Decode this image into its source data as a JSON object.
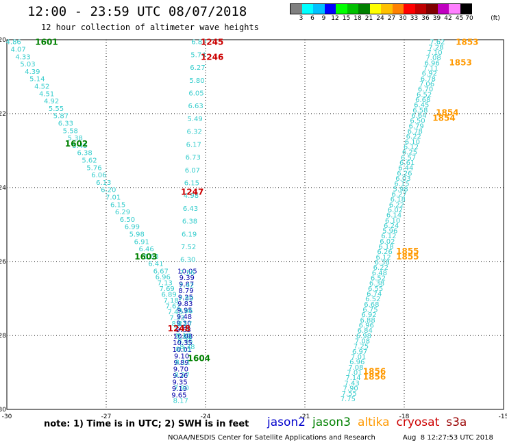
{
  "header": {
    "title": "12:00 - 23:59 UTC 08/07/2018",
    "subtitle": "12 hour collection of altimeter wave heights"
  },
  "color_scale": {
    "unit": "(ft)",
    "ticks": [
      "3",
      "6",
      "9",
      "12",
      "15",
      "18",
      "21",
      "24",
      "27",
      "30",
      "33",
      "36",
      "39",
      "42",
      "45",
      "70"
    ],
    "colors": [
      "#808080",
      "#00ffff",
      "#00c0ff",
      "#0000ff",
      "#00ff00",
      "#00c000",
      "#008000",
      "#ffff00",
      "#ffc000",
      "#ff8000",
      "#ff0000",
      "#c00000",
      "#800000",
      "#c000c0",
      "#ff80ff",
      "#000000"
    ]
  },
  "footer": {
    "note": "note: 1) Time is in UTC; 2) SWH is in feet",
    "credit": "NOAA/NESDIS Center for Satellite Applications and Research",
    "generated": "Aug  8 12:27:53 UTC 2018"
  },
  "satellites": [
    {
      "name": "jason2",
      "color": "#0000cc"
    },
    {
      "name": "jason3",
      "color": "#008000"
    },
    {
      "name": "altika",
      "color": "#ff9900"
    },
    {
      "name": "cryosat",
      "color": "#cc0000"
    },
    {
      "name": "s3a",
      "color": "#990000"
    }
  ],
  "chart_data": {
    "type": "scatter",
    "x_ticks": [
      -30,
      -27,
      -24,
      -21,
      -18,
      -15
    ],
    "y_ticks": [
      -20,
      -22,
      -24,
      -26,
      -28,
      -30
    ],
    "xlim": [
      -30,
      -15
    ],
    "ylim": [
      -30,
      -20
    ],
    "grid": true,
    "tracks": [
      {
        "name": "jason3-descending",
        "color": "#33cccc",
        "start": [
          -29.8,
          -20.05
        ],
        "end": [
          -25.5,
          -26.05
        ],
        "values": [
          "4.86",
          "4.07",
          "4.33",
          "5.03",
          "4.39",
          "5.14",
          "4.52",
          "4.51",
          "4.92",
          "5.55",
          "5.87",
          "6.33",
          "5.58",
          "5.38",
          "5.45",
          "6.38",
          "5.62",
          "5.76",
          "6.06",
          "6.13",
          "6.20",
          "7.01",
          "6.15",
          "6.29",
          "6.50",
          "6.99",
          "5.98",
          "6.91",
          "6.46",
          "6.68",
          "6.41"
        ],
        "time_labels": [
          {
            "text": "1601",
            "x": -28.8,
            "y": -20.05,
            "color": "#008000"
          },
          {
            "text": "1602",
            "x": -27.9,
            "y": -22.8,
            "color": "#008000"
          },
          {
            "text": "1603",
            "x": -25.8,
            "y": -25.85,
            "color": "#008000"
          }
        ]
      },
      {
        "name": "jason3-descending-deep",
        "color": "#33cccc",
        "start": [
          -25.35,
          -26.25
        ],
        "end": [
          -24.55,
          -28.3
        ],
        "values": [
          "6.67",
          "6.96",
          "7.13",
          "7.69",
          "6.89",
          "7.18",
          "7.62",
          "7.43",
          "7.33",
          "8.22",
          "7.73",
          "8.10",
          "8.45",
          "8.38"
        ]
      },
      {
        "name": "jason2-descending",
        "color": "#0000aa",
        "start": [
          -24.55,
          -26.25
        ],
        "end": [
          -24.8,
          -29.6
        ],
        "values": [
          "10.05",
          "9.39",
          "9.87",
          "8.79",
          "9.25",
          "9.83",
          "9.95",
          "9.48",
          "9.30",
          "9.63",
          "10.08",
          "10.35",
          "10.01",
          "9.10",
          "9.89",
          "9.70",
          "9.26",
          "9.35",
          "9.19",
          "9.65"
        ],
        "time_labels": [
          {
            "text": "1604",
            "x": -24.2,
            "y": -28.6,
            "color": "#008000"
          }
        ]
      },
      {
        "name": "s3a-ascending",
        "color": "#33cccc",
        "start": [
          -24.75,
          -29.75
        ],
        "end": [
          -24.2,
          -20.05
        ],
        "values": [
          "8.17",
          "7.90",
          "8.27",
          "8.11",
          "8.13",
          "7.99",
          "8.17",
          "7.96",
          "7.89",
          "7.42",
          "7.56",
          "6.30",
          "7.52",
          "6.19",
          "6.38",
          "6.43",
          "4.98",
          "6.15",
          "6.07",
          "6.73",
          "6.17",
          "6.32",
          "5.49",
          "6.63",
          "6.05",
          "5.80",
          "6.27",
          "5.74",
          "6.82"
        ],
        "time_labels": [
          {
            "text": "1245",
            "x": -23.8,
            "y": -20.05,
            "color": "#cc0000"
          },
          {
            "text": "1246",
            "x": -23.8,
            "y": -20.45,
            "color": "#cc0000"
          },
          {
            "text": "1247",
            "x": -24.4,
            "y": -24.1,
            "color": "#cc0000"
          },
          {
            "text": "1248",
            "x": -24.8,
            "y": -27.8,
            "color": "#cc0000"
          }
        ]
      },
      {
        "name": "altika-ascending",
        "color": "#33cccc",
        "start": [
          -19.7,
          -29.7
        ],
        "end": [
          -17.0,
          -20.05
        ],
        "values": [
          "7.75",
          "7.55",
          "7.90",
          "7.43",
          "7.14",
          "7.01",
          "7.08",
          "6.96",
          "7.01",
          "6.97",
          "7.25",
          "7.08",
          "6.98",
          "6.84",
          "6.96",
          "6.88",
          "6.92",
          "6.75",
          "6.68",
          "6.52",
          "6.74",
          "6.55",
          "6.38",
          "6.52",
          "6.48",
          "6.22",
          "6.38",
          "6.12",
          "6.26",
          "6.18",
          "6.02",
          "6.12",
          "5.96",
          "6.24",
          "6.10",
          "6.14",
          "6.02",
          "6.22",
          "6.18",
          "6.27",
          "5.98",
          "6.15",
          "6.03",
          "6.26",
          "6.44",
          "6.61",
          "6.57",
          "6.25",
          "6.12",
          "6.10",
          "6.22",
          "6.78",
          "6.79",
          "6.50",
          "6.64",
          "6.58",
          "6.45",
          "6.68",
          "6.52",
          "6.70",
          "7.06",
          "6.78",
          "6.92",
          "7.11",
          "6.96",
          "7.08",
          "7.10",
          "7.28",
          "7.62"
        ],
        "time_labels": [
          {
            "text": "1853",
            "x": -16.1,
            "y": -20.05,
            "color": "#ff9900"
          },
          {
            "text": "1853",
            "x": -16.3,
            "y": -20.6,
            "color": "#ff9900"
          },
          {
            "text": "1854",
            "x": -16.7,
            "y": -21.95,
            "color": "#ff9900"
          },
          {
            "text": "1854",
            "x": -16.8,
            "y": -22.1,
            "color": "#ff9900"
          },
          {
            "text": "1855",
            "x": -17.9,
            "y": -25.7,
            "color": "#ff9900"
          },
          {
            "text": "1855",
            "x": -17.9,
            "y": -25.85,
            "color": "#ff9900"
          },
          {
            "text": "1856",
            "x": -18.9,
            "y": -28.95,
            "color": "#ff9900"
          },
          {
            "text": "1856",
            "x": -18.9,
            "y": -29.1,
            "color": "#ff9900"
          }
        ]
      }
    ]
  }
}
